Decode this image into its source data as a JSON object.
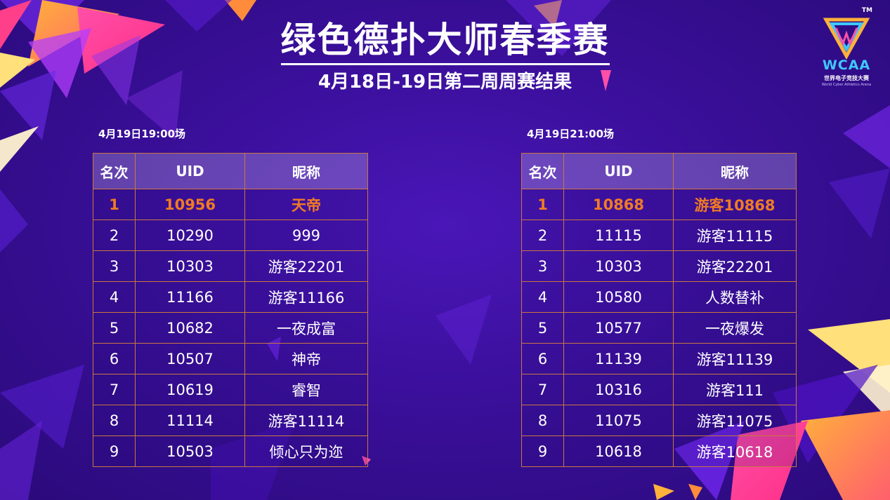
{
  "header": {
    "title": "绿色德扑大师春季赛",
    "subtitle": "4月18日-19日第二周周赛结果"
  },
  "logo": {
    "tm": "TM",
    "brand": "WCAA",
    "cn_name": "世界电子竞技大赛",
    "en_name": "World Cyber Athletics Arena"
  },
  "colors": {
    "background": "#3a0f9a",
    "highlight_rank": "#f07b24",
    "table_border": "#c9783d",
    "logo_accent": "#3ec8ff"
  },
  "columns": [
    "名次",
    "UID",
    "昵称"
  ],
  "sessions": [
    {
      "title": "4月19日19:00场",
      "rows": [
        [
          "1",
          "10956",
          "天帝"
        ],
        [
          "2",
          "10290",
          "999"
        ],
        [
          "3",
          "10303",
          "游客22201"
        ],
        [
          "4",
          "11166",
          "游客11166"
        ],
        [
          "5",
          "10682",
          "一夜成富"
        ],
        [
          "6",
          "10507",
          "神帝"
        ],
        [
          "7",
          "10619",
          "睿智"
        ],
        [
          "8",
          "11114",
          "游客11114"
        ],
        [
          "9",
          "10503",
          "倾心只为迩"
        ]
      ]
    },
    {
      "title": "4月19日21:00场",
      "rows": [
        [
          "1",
          "10868",
          "游客10868"
        ],
        [
          "2",
          "11115",
          "游客11115"
        ],
        [
          "3",
          "10303",
          "游客22201"
        ],
        [
          "4",
          "10580",
          "人数替补"
        ],
        [
          "5",
          "10577",
          "一夜爆发"
        ],
        [
          "6",
          "11139",
          "游客11139"
        ],
        [
          "7",
          "10316",
          "游客111"
        ],
        [
          "8",
          "11075",
          "游客11075"
        ],
        [
          "9",
          "10618",
          "游客10618"
        ]
      ]
    }
  ]
}
